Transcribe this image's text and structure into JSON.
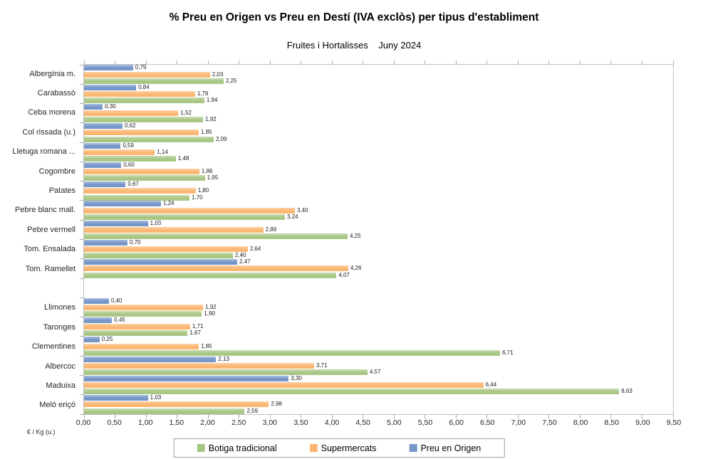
{
  "chart_data": {
    "type": "bar",
    "orientation": "horizontal",
    "grouped": true,
    "title": "% Preu en Origen vs Preu en Destí (IVA exclòs) per tipus d'establiment",
    "subtitle": "Fruites i Hortalisses    Juny 2024",
    "xlabel": "€ / Kg (u.)",
    "xlim": [
      0,
      9.5
    ],
    "xtick_step": 0.5,
    "xtick_labels": [
      "0,00",
      "0,50",
      "1,00",
      "1,50",
      "2,00",
      "2,50",
      "3,00",
      "3,50",
      "4,00",
      "4,50",
      "5,00",
      "5,50",
      "6,00",
      "6,50",
      "7,00",
      "7,50",
      "8,00",
      "8,50",
      "9,00",
      "9,50"
    ],
    "decimal_separator": ",",
    "grid": false,
    "legend_position": "bottom",
    "series": [
      {
        "key": "origen",
        "name": "Preu en Origen",
        "color": "#7596C8"
      },
      {
        "key": "supermercats",
        "name": "Supermercats",
        "color": "#FBB671"
      },
      {
        "key": "botiga",
        "name": "Botiga tradicional",
        "color": "#A8C784"
      }
    ],
    "bar_order_top_to_bottom": [
      "origen",
      "supermercats",
      "botiga"
    ],
    "legend_order": [
      "botiga",
      "supermercats",
      "origen"
    ],
    "rows": [
      {
        "label": "Albergínia m.",
        "values": {
          "origen": "0,79",
          "supermercats": "2,03",
          "botiga": "2,25"
        }
      },
      {
        "label": "Carabassó",
        "values": {
          "origen": "0,84",
          "supermercats": "1,79",
          "botiga": "1,94"
        }
      },
      {
        "label": "Ceba morena",
        "values": {
          "origen": "0,30",
          "supermercats": "1,52",
          "botiga": "1,92"
        }
      },
      {
        "label": "Col rissada (u.)",
        "values": {
          "origen": "0,62",
          "supermercats": "1,85",
          "botiga": "2,09"
        }
      },
      {
        "label": "Lletuga romana ...",
        "values": {
          "origen": "0,59",
          "supermercats": "1,14",
          "botiga": "1,48"
        }
      },
      {
        "label": "Cogombre",
        "values": {
          "origen": "0,60",
          "supermercats": "1,86",
          "botiga": "1,95"
        }
      },
      {
        "label": "Patates",
        "values": {
          "origen": "0,67",
          "supermercats": "1,80",
          "botiga": "1,70"
        }
      },
      {
        "label": "Pebre blanc mall.",
        "values": {
          "origen": "1,24",
          "supermercats": "3,40",
          "botiga": "3,24"
        }
      },
      {
        "label": "Pebre vermell",
        "values": {
          "origen": "1,03",
          "supermercats": "2,89",
          "botiga": "4,25"
        }
      },
      {
        "label": "Tom. Ensalada",
        "values": {
          "origen": "0,70",
          "supermercats": "2,64",
          "botiga": "2,40"
        }
      },
      {
        "label": "Tom. Ramellet",
        "values": {
          "origen": "2,47",
          "supermercats": "4,26",
          "botiga": "4,07"
        }
      },
      {
        "spacer": true
      },
      {
        "label": "Llimones",
        "values": {
          "origen": "0,40",
          "supermercats": "1,92",
          "botiga": "1,90"
        }
      },
      {
        "label": "Taronges",
        "values": {
          "origen": "0,45",
          "supermercats": "1,71",
          "botiga": "1,67"
        }
      },
      {
        "label": "Clementines",
        "values": {
          "origen": "0,25",
          "supermercats": "1,85",
          "botiga": "6,71"
        }
      },
      {
        "label": "Albercoc",
        "values": {
          "origen": "2,13",
          "supermercats": "3,71",
          "botiga": "4,57"
        }
      },
      {
        "label": "Maduixa",
        "values": {
          "origen": "3,30",
          "supermercats": "6,44",
          "botiga": "8,63"
        }
      },
      {
        "label": "Meló eriçó",
        "values": {
          "origen": "1,03",
          "supermercats": "2,98",
          "botiga": "2,59"
        }
      }
    ]
  }
}
